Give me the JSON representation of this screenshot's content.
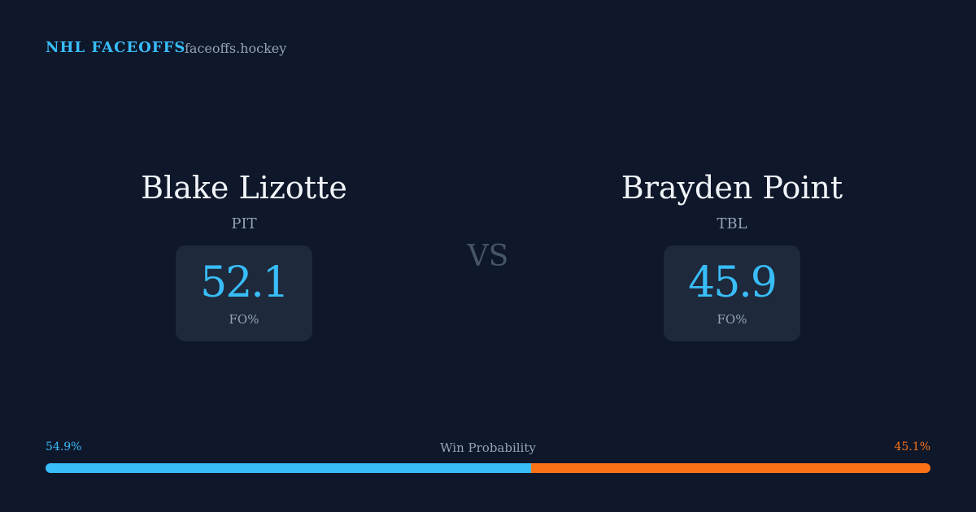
{
  "header": {
    "brand": "NHL FACEOFFS",
    "site": "faceoffs.hockey"
  },
  "players": [
    {
      "name": "Blake Lizotte",
      "team": "PIT",
      "fo_pct": "52.1",
      "fo_label": "FO%"
    },
    {
      "name": "Brayden Point",
      "team": "TBL",
      "fo_pct": "45.9",
      "fo_label": "FO%"
    }
  ],
  "vs": "VS",
  "win_probability": {
    "label": "Win Probability",
    "values": [
      54.9,
      45.1
    ],
    "value_labels": [
      "54.9%",
      "45.1%"
    ],
    "colors": [
      "#38bdf8",
      "#f97316"
    ]
  }
}
